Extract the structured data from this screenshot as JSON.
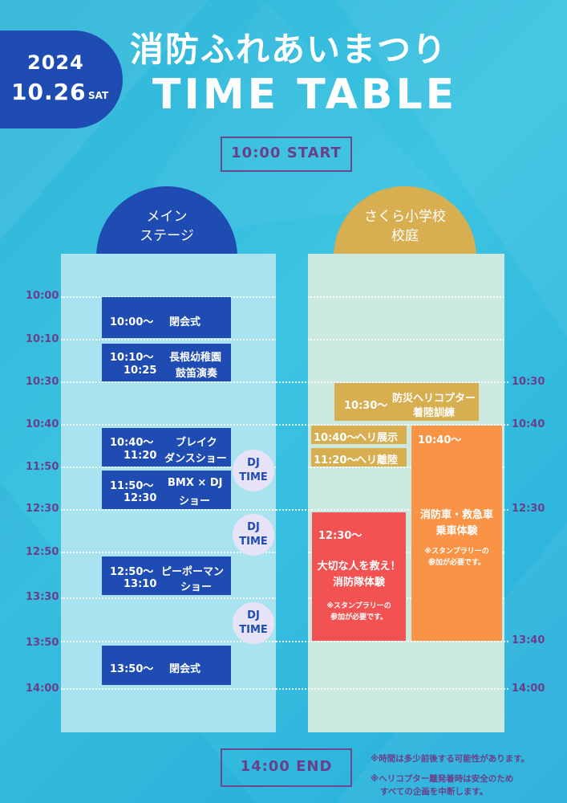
{
  "date": {
    "year": "2024",
    "day": "10.26",
    "dow": "SAT"
  },
  "title": "消防ふれあいまつり",
  "subtitle": "TIME TABLE",
  "start_label": "10:00 START",
  "end_label": "14:00 END",
  "columns": {
    "main": {
      "line1": "メイン",
      "line2": "ステージ"
    },
    "school": {
      "line1": "さくら小学校",
      "line2": "校庭"
    }
  },
  "ticks_left": [
    "10:00",
    "10:10",
    "10:30",
    "10:40",
    "11:50",
    "12:30",
    "12:50",
    "13:30",
    "13:50",
    "14:00"
  ],
  "ticks_right": [
    "10:30",
    "10:40",
    "12:30",
    "13:40",
    "14:00"
  ],
  "main_events": [
    {
      "time1": "10:00〜",
      "name1": "閉会式"
    },
    {
      "time1": "10:10〜",
      "time2": "10:25",
      "name1": "長根幼稚園",
      "name2": "鼓笛演奏"
    },
    {
      "time1": "10:40〜",
      "time2": "11:20",
      "name1": "ブレイク",
      "name2": "ダンスショー"
    },
    {
      "time1": "11:50〜",
      "time2": "12:30",
      "name1": "BMX × DJ",
      "name2": "ショー"
    },
    {
      "time1": "12:50〜",
      "time2": "13:10",
      "name1": "ピーポーマン",
      "name2": "ショー"
    },
    {
      "time1": "13:50〜",
      "name1": "閉会式"
    }
  ],
  "dj": {
    "line1": "DJ",
    "line2": "TIME"
  },
  "school_events": {
    "heli_training": {
      "time": "10:30〜",
      "name1": "防災ヘリコプター",
      "name2": "着陸訓練"
    },
    "heli_display": {
      "time": "10:40〜",
      "name": "ヘリ展示"
    },
    "heli_depart": {
      "time": "11:20〜",
      "name": "ヘリ離陸"
    },
    "rescue": {
      "time": "12:30〜",
      "name1": "大切な人を救え！",
      "name2": "消防隊体験",
      "note1": "※スタンプラリーの",
      "note2": "参加が必要です。"
    },
    "vehicle": {
      "time": "10:40〜",
      "name1": "消防車・救急車",
      "name2": "乗車体験",
      "note1": "※スタンプラリーの",
      "note2": "参加が必要です。"
    }
  },
  "notes": [
    "※時間は多少前後する可能性があります。",
    "※ヘリコプター離発着時は安全のため",
    "すべての企画を中断します。"
  ],
  "colors": {
    "navy": "#1f4cb3",
    "gold": "#d7ae50",
    "red": "#f25252",
    "orange": "#f99447",
    "purple": "#6a3f8a"
  }
}
